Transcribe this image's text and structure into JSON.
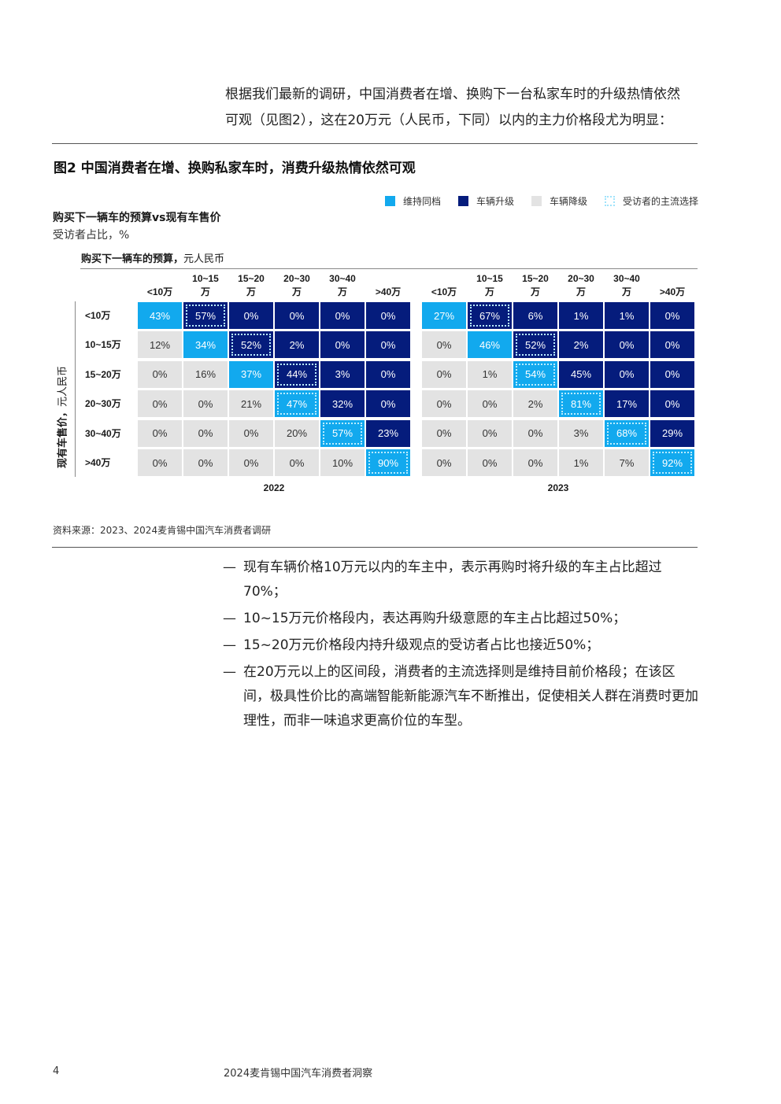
{
  "intro": {
    "line1": "根据我们最新的调研，中国消费者在增、换购下一台私家车时的升级热情依然",
    "line2": "可观（见图2），这在20万元（人民币，下同）以内的主力价格段尤为明显："
  },
  "figure": {
    "title": "图2 中国消费者在增、换购私家车时，消费升级热情依然可观",
    "legend": [
      {
        "label": "维持同档",
        "color": "#12a9ee",
        "style": "fill"
      },
      {
        "label": "车辆升级",
        "color": "#051c7c",
        "style": "fill"
      },
      {
        "label": "车辆降级",
        "color": "#e3e3e3",
        "style": "fill"
      },
      {
        "label": "受访者的主流选择",
        "color": "#9fe3fb",
        "style": "dotted"
      }
    ],
    "subtitle": "购买下一辆车的预算vs现有车售价",
    "unit": "受访者占比，%",
    "col_title_bold": "购买下一辆车的预算，",
    "col_title_unit": "元人民币",
    "y_title_bold": "现有车售价，",
    "y_title_unit": "元人民币",
    "source": "资料来源：2023、2024麦肯锡中国汽车消费者调研"
  },
  "chart_data": [
    {
      "type": "heatmap",
      "title": "2022",
      "x_categories": [
        "<10万",
        "10~15万",
        "15~20万",
        "20~30万",
        "30~40万",
        ">40万"
      ],
      "y_categories": [
        "<10万",
        "10~15万",
        "15~20万",
        "20~30万",
        "30~40万",
        ">40万"
      ],
      "x_label": "购买下一辆车的预算，元人民币",
      "y_label": "现有车售价，元人民币",
      "values": [
        [
          43,
          57,
          0,
          0,
          0,
          0
        ],
        [
          12,
          34,
          52,
          2,
          0,
          0
        ],
        [
          0,
          16,
          37,
          44,
          3,
          0
        ],
        [
          0,
          0,
          21,
          47,
          32,
          0
        ],
        [
          0,
          0,
          0,
          20,
          57,
          23
        ],
        [
          0,
          0,
          0,
          0,
          10,
          90
        ]
      ],
      "labels": [
        [
          "43%",
          "57%",
          "0%",
          "0%",
          "0%",
          "0%"
        ],
        [
          "12%",
          "34%",
          "52%",
          "2%",
          "0%",
          "0%"
        ],
        [
          "0%",
          "16%",
          "37%",
          "44%",
          "3%",
          "0%"
        ],
        [
          "0%",
          "0%",
          "21%",
          "47%",
          "32%",
          "0%"
        ],
        [
          "0%",
          "0%",
          "0%",
          "20%",
          "57%",
          "23%"
        ],
        [
          "0%",
          "0%",
          "0%",
          "0%",
          "10%",
          "90%"
        ]
      ],
      "mainstream_choice": [
        [
          0,
          1
        ],
        [
          1,
          2
        ],
        [
          2,
          3
        ],
        [
          3,
          3
        ],
        [
          4,
          4
        ],
        [
          5,
          5
        ]
      ]
    },
    {
      "type": "heatmap",
      "title": "2023",
      "x_categories": [
        "<10万",
        "10~15万",
        "15~20万",
        "20~30万",
        "30~40万",
        ">40万"
      ],
      "y_categories": [
        "<10万",
        "10~15万",
        "15~20万",
        "20~30万",
        "30~40万",
        ">40万"
      ],
      "x_label": "购买下一辆车的预算，元人民币",
      "y_label": "现有车售价，元人民币",
      "values": [
        [
          27,
          67,
          6,
          1,
          1,
          0
        ],
        [
          0,
          46,
          52,
          2,
          0,
          0
        ],
        [
          0,
          1,
          54,
          45,
          0,
          0
        ],
        [
          0,
          0,
          2,
          81,
          17,
          0
        ],
        [
          0,
          0,
          0,
          3,
          68,
          29
        ],
        [
          0,
          0,
          0,
          1,
          7,
          92
        ]
      ],
      "labels": [
        [
          "27%",
          "67%",
          "6%",
          "1%",
          "1%",
          "0%"
        ],
        [
          "0%",
          "46%",
          "52%",
          "2%",
          "0%",
          "0%"
        ],
        [
          "0%",
          "1%",
          "54%",
          "45%",
          "0%",
          "0%"
        ],
        [
          "0%",
          "0%",
          "2%",
          "81%",
          "17%",
          "0%"
        ],
        [
          "0%",
          "0%",
          "0%",
          "3%",
          "68%",
          "29%"
        ],
        [
          "0%",
          "0%",
          "0%",
          "1%",
          "7%",
          "92%"
        ]
      ],
      "mainstream_choice": [
        [
          0,
          1
        ],
        [
          1,
          2
        ],
        [
          2,
          2
        ],
        [
          3,
          3
        ],
        [
          4,
          4
        ],
        [
          5,
          5
        ]
      ]
    }
  ],
  "bullets": [
    "现有车辆价格10万元以内的车主中，表示再购时将升级的车主占比超过70%；",
    "10~15万元价格段内，表达再购升级意愿的车主占比超过50%；",
    "15~20万元价格段内持升级观点的受访者占比也接近50%；",
    "在20万元以上的区间段，消费者的主流选择则是维持目前价格段；在该区间，极具性价比的高端智能新能源汽车不断推出，促使相关人群在消费时更加理性，而非一味追求更高价位的车型。"
  ],
  "footer": {
    "page": "4",
    "title": "2024麦肯锡中国汽车消费者洞察"
  }
}
